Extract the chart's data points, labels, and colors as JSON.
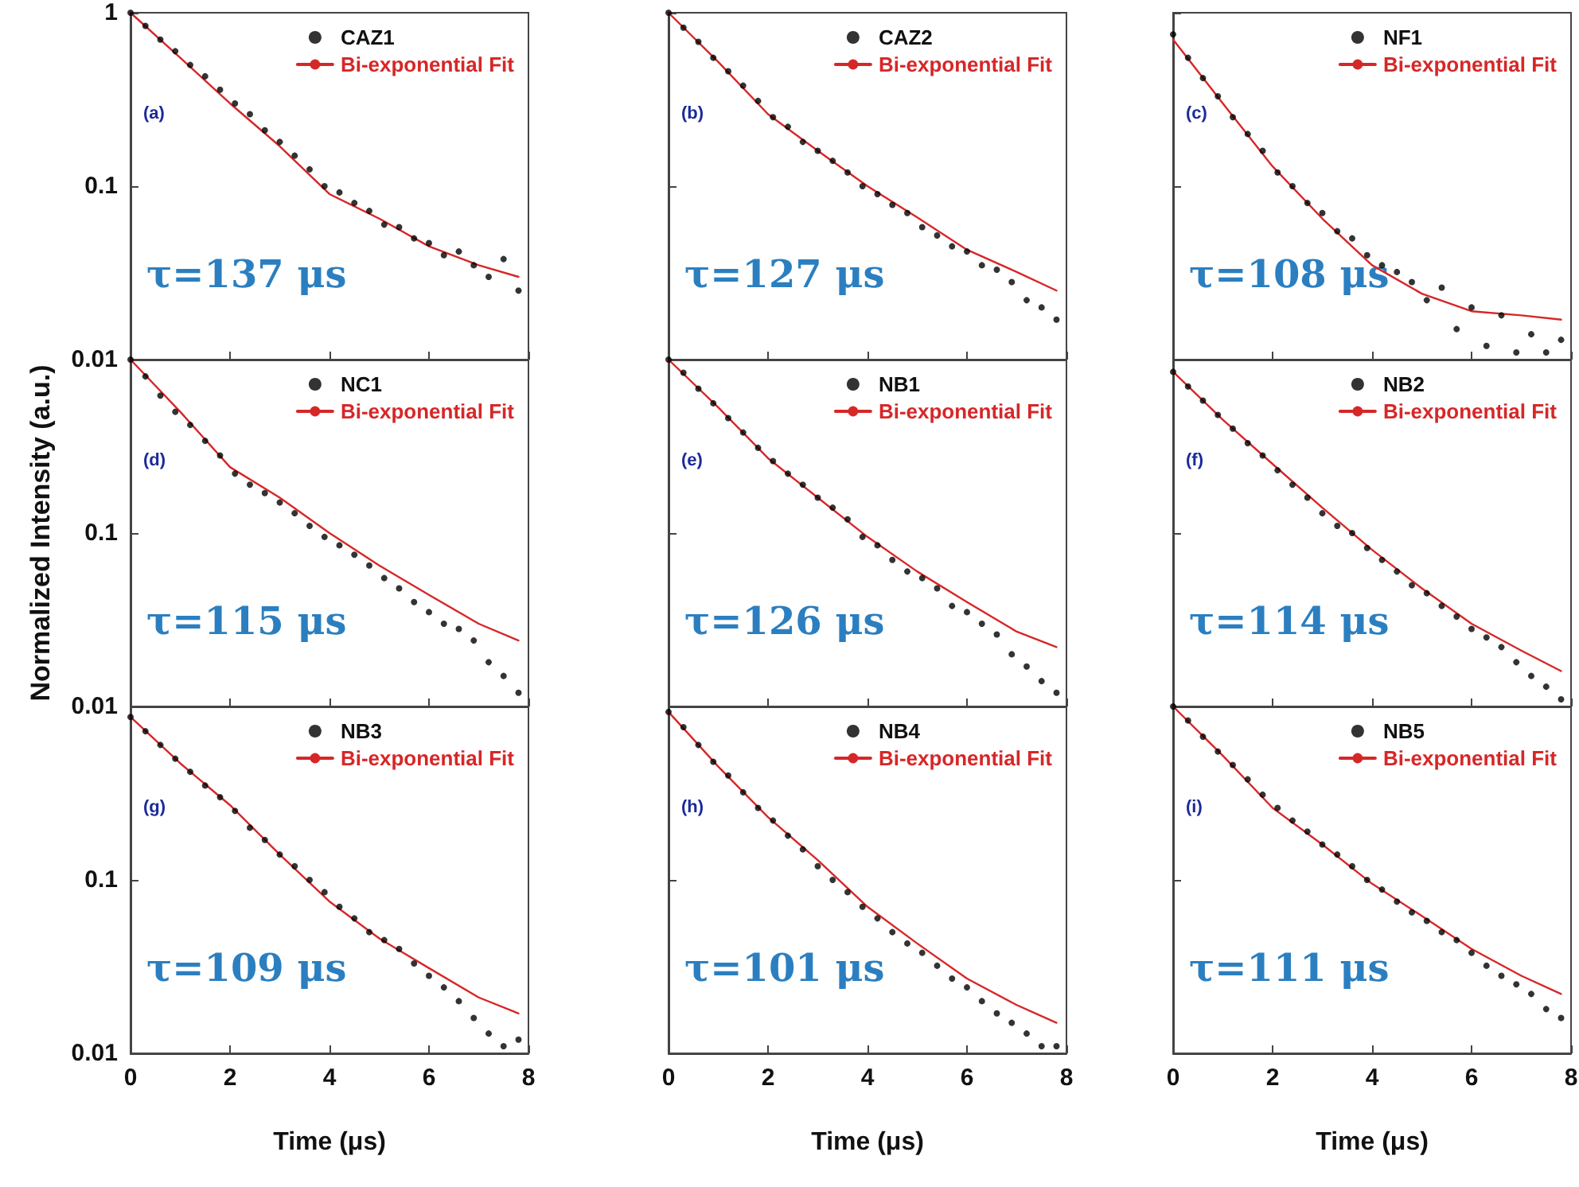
{
  "chart_data": [
    {
      "type": "scatter",
      "annotations": [
        "(a)",
        "τ=137 μs"
      ],
      "xlim": [
        0,
        8
      ],
      "xticks": [
        0,
        2,
        4,
        6,
        8
      ],
      "ylim": [
        0.01,
        1
      ],
      "yticks": [
        0.01,
        0.1,
        1
      ],
      "log": "y",
      "legend": "top right",
      "marker": "circle",
      "tick_labels": "y",
      "series": [
        {
          "name": "CAZ1",
          "color": "#000000",
          "x": [
            0,
            0.3,
            0.6,
            0.9,
            1.2,
            1.5,
            1.8,
            2.1,
            2.4,
            2.7,
            3,
            3.3,
            3.6,
            3.9,
            4.2,
            4.5,
            4.8,
            5.1,
            5.4,
            5.7,
            6,
            6.3,
            6.6,
            6.9,
            7.2,
            7.5,
            7.8
          ],
          "values": [
            1.0,
            0.84,
            0.7,
            0.6,
            0.5,
            0.43,
            0.36,
            0.3,
            0.26,
            0.21,
            0.18,
            0.15,
            0.125,
            0.1,
            0.092,
            0.08,
            0.072,
            0.06,
            0.058,
            0.05,
            0.047,
            0.04,
            0.042,
            0.035,
            0.03,
            0.038,
            0.025
          ]
        },
        {
          "name": "Bi-exponential Fit",
          "type": "line",
          "marker": "none",
          "color": "#d62728",
          "x": [
            0,
            1,
            2,
            3,
            4,
            5,
            6,
            7,
            7.8
          ],
          "values": [
            1,
            0.55,
            0.3,
            0.17,
            0.09,
            0.065,
            0.045,
            0.035,
            0.03
          ]
        }
      ]
    },
    {
      "type": "scatter",
      "annotations": [
        "(b)",
        "τ=127 μs"
      ],
      "xlim": [
        0,
        8
      ],
      "xticks": [
        0,
        2,
        4,
        6,
        8
      ],
      "ylim": [
        0.01,
        1
      ],
      "yticks": [
        0.01,
        0.1,
        1
      ],
      "log": "y",
      "legend": "top right",
      "marker": "circle",
      "tick_labels": false,
      "series": [
        {
          "name": "CAZ2",
          "color": "#000000",
          "x": [
            0,
            0.3,
            0.6,
            0.9,
            1.2,
            1.5,
            1.8,
            2.1,
            2.4,
            2.7,
            3,
            3.3,
            3.6,
            3.9,
            4.2,
            4.5,
            4.8,
            5.1,
            5.4,
            5.7,
            6,
            6.3,
            6.6,
            6.9,
            7.2,
            7.5,
            7.8
          ],
          "values": [
            1.0,
            0.82,
            0.68,
            0.55,
            0.46,
            0.38,
            0.31,
            0.25,
            0.22,
            0.18,
            0.16,
            0.14,
            0.12,
            0.1,
            0.09,
            0.078,
            0.07,
            0.058,
            0.052,
            0.045,
            0.042,
            0.035,
            0.033,
            0.028,
            0.022,
            0.02,
            0.017
          ]
        },
        {
          "name": "Bi-exponential Fit",
          "type": "line",
          "marker": "none",
          "color": "#d62728",
          "x": [
            0,
            1,
            2,
            3,
            4,
            5,
            6,
            7,
            7.8
          ],
          "values": [
            1,
            0.52,
            0.26,
            0.16,
            0.1,
            0.066,
            0.043,
            0.032,
            0.025
          ]
        }
      ]
    },
    {
      "type": "scatter",
      "annotations": [
        "(c)",
        "τ=108 μs"
      ],
      "xlim": [
        0,
        8
      ],
      "xticks": [
        0,
        2,
        4,
        6,
        8
      ],
      "ylim": [
        0.01,
        1
      ],
      "yticks": [
        0.01,
        0.1,
        1
      ],
      "log": "y",
      "legend": "top right",
      "marker": "circle",
      "tick_labels": false,
      "series": [
        {
          "name": "NF1",
          "color": "#000000",
          "x": [
            0,
            0.3,
            0.6,
            0.9,
            1.2,
            1.5,
            1.8,
            2.1,
            2.4,
            2.7,
            3,
            3.3,
            3.6,
            3.9,
            4.2,
            4.5,
            4.8,
            5.1,
            5.4,
            5.7,
            6,
            6.3,
            6.6,
            6.9,
            7.2,
            7.5,
            7.8
          ],
          "values": [
            0.75,
            0.55,
            0.42,
            0.33,
            0.25,
            0.2,
            0.16,
            0.12,
            0.1,
            0.08,
            0.07,
            0.055,
            0.05,
            0.04,
            0.035,
            0.032,
            0.028,
            0.022,
            0.026,
            0.015,
            0.02,
            0.012,
            0.018,
            0.011,
            0.014,
            0.011,
            0.013
          ]
        },
        {
          "name": "Bi-exponential Fit",
          "type": "line",
          "marker": "none",
          "color": "#d62728",
          "x": [
            0,
            1,
            2,
            3,
            4,
            5,
            6,
            7,
            7.8
          ],
          "values": [
            0.7,
            0.3,
            0.13,
            0.065,
            0.035,
            0.024,
            0.019,
            0.018,
            0.017
          ]
        }
      ]
    },
    {
      "type": "scatter",
      "ylabel": "Normalized Intensity (a.u.)",
      "annotations": [
        "(d)",
        "τ=115 μs"
      ],
      "xlim": [
        0,
        8
      ],
      "xticks": [
        0,
        2,
        4,
        6,
        8
      ],
      "ylim": [
        0.01,
        1
      ],
      "yticks": [
        0.01,
        0.1
      ],
      "log": "y",
      "legend": "top right",
      "marker": "circle",
      "tick_labels": "y",
      "series": [
        {
          "name": "NC1",
          "color": "#000000",
          "x": [
            0,
            0.3,
            0.6,
            0.9,
            1.2,
            1.5,
            1.8,
            2.1,
            2.4,
            2.7,
            3,
            3.3,
            3.6,
            3.9,
            4.2,
            4.5,
            4.8,
            5.1,
            5.4,
            5.7,
            6,
            6.3,
            6.6,
            6.9,
            7.2,
            7.5,
            7.8
          ],
          "values": [
            1.0,
            0.8,
            0.62,
            0.5,
            0.42,
            0.34,
            0.28,
            0.22,
            0.19,
            0.17,
            0.15,
            0.13,
            0.11,
            0.095,
            0.085,
            0.075,
            0.065,
            0.055,
            0.048,
            0.04,
            0.035,
            0.03,
            0.028,
            0.024,
            0.018,
            0.015,
            0.012
          ]
        },
        {
          "name": "Bi-exponential Fit",
          "type": "line",
          "marker": "none",
          "color": "#d62728",
          "x": [
            0,
            1,
            2,
            3,
            4,
            5,
            6,
            7,
            7.8
          ],
          "values": [
            1,
            0.5,
            0.24,
            0.16,
            0.1,
            0.065,
            0.044,
            0.03,
            0.024
          ]
        }
      ]
    },
    {
      "type": "scatter",
      "annotations": [
        "(e)",
        "τ=126 μs"
      ],
      "xlim": [
        0,
        8
      ],
      "xticks": [
        0,
        2,
        4,
        6,
        8
      ],
      "ylim": [
        0.01,
        1
      ],
      "yticks": [
        0.01,
        0.1
      ],
      "log": "y",
      "legend": "top right",
      "marker": "circle",
      "tick_labels": false,
      "series": [
        {
          "name": "NB1",
          "color": "#000000",
          "x": [
            0,
            0.3,
            0.6,
            0.9,
            1.2,
            1.5,
            1.8,
            2.1,
            2.4,
            2.7,
            3,
            3.3,
            3.6,
            3.9,
            4.2,
            4.5,
            4.8,
            5.1,
            5.4,
            5.7,
            6,
            6.3,
            6.6,
            6.9,
            7.2,
            7.5,
            7.8
          ],
          "values": [
            1.0,
            0.84,
            0.68,
            0.56,
            0.46,
            0.38,
            0.31,
            0.26,
            0.22,
            0.19,
            0.16,
            0.14,
            0.12,
            0.095,
            0.085,
            0.07,
            0.06,
            0.055,
            0.048,
            0.038,
            0.035,
            0.03,
            0.026,
            0.02,
            0.017,
            0.014,
            0.012
          ]
        },
        {
          "name": "Bi-exponential Fit",
          "type": "line",
          "marker": "none",
          "color": "#d62728",
          "x": [
            0,
            1,
            2,
            3,
            4,
            5,
            6,
            7,
            7.8
          ],
          "values": [
            1,
            0.53,
            0.27,
            0.16,
            0.095,
            0.06,
            0.04,
            0.027,
            0.022
          ]
        }
      ]
    },
    {
      "type": "scatter",
      "annotations": [
        "(f)",
        "τ=114 μs"
      ],
      "xlim": [
        0,
        8
      ],
      "xticks": [
        0,
        2,
        4,
        6,
        8
      ],
      "ylim": [
        0.01,
        1
      ],
      "yticks": [
        0.01,
        0.1
      ],
      "log": "y",
      "legend": "top right",
      "marker": "circle",
      "tick_labels": false,
      "series": [
        {
          "name": "NB2",
          "color": "#000000",
          "x": [
            0,
            0.3,
            0.6,
            0.9,
            1.2,
            1.5,
            1.8,
            2.1,
            2.4,
            2.7,
            3,
            3.3,
            3.6,
            3.9,
            4.2,
            4.5,
            4.8,
            5.1,
            5.4,
            5.7,
            6,
            6.3,
            6.6,
            6.9,
            7.2,
            7.5,
            7.8
          ],
          "values": [
            0.85,
            0.7,
            0.58,
            0.48,
            0.4,
            0.33,
            0.28,
            0.23,
            0.19,
            0.16,
            0.13,
            0.11,
            0.1,
            0.082,
            0.07,
            0.06,
            0.05,
            0.045,
            0.038,
            0.033,
            0.028,
            0.025,
            0.022,
            0.018,
            0.015,
            0.013,
            0.011
          ]
        },
        {
          "name": "Bi-exponential Fit",
          "type": "line",
          "marker": "none",
          "color": "#d62728",
          "x": [
            0,
            1,
            2,
            3,
            4,
            5,
            6,
            7,
            7.8
          ],
          "values": [
            0.85,
            0.45,
            0.25,
            0.14,
            0.08,
            0.048,
            0.03,
            0.021,
            0.016
          ]
        }
      ]
    },
    {
      "type": "scatter",
      "xlabel": "Time (μs)",
      "annotations": [
        "(g)",
        "τ=109 μs"
      ],
      "xlim": [
        0,
        8
      ],
      "xticks": [
        0,
        2,
        4,
        6,
        8
      ],
      "ylim": [
        0.01,
        1
      ],
      "yticks": [
        0.01,
        0.1
      ],
      "log": "y",
      "legend": "top right",
      "marker": "circle",
      "series": [
        {
          "name": "NB3",
          "color": "#000000",
          "x": [
            0,
            0.3,
            0.6,
            0.9,
            1.2,
            1.5,
            1.8,
            2.1,
            2.4,
            2.7,
            3,
            3.3,
            3.6,
            3.9,
            4.2,
            4.5,
            4.8,
            5.1,
            5.4,
            5.7,
            6,
            6.3,
            6.6,
            6.9,
            7.2,
            7.5,
            7.8
          ],
          "values": [
            0.87,
            0.72,
            0.6,
            0.5,
            0.42,
            0.35,
            0.3,
            0.25,
            0.2,
            0.17,
            0.14,
            0.12,
            0.1,
            0.085,
            0.07,
            0.06,
            0.05,
            0.045,
            0.04,
            0.033,
            0.028,
            0.024,
            0.02,
            0.016,
            0.013,
            0.011,
            0.012
          ]
        },
        {
          "name": "Bi-exponential Fit",
          "type": "line",
          "marker": "none",
          "color": "#d62728",
          "x": [
            0,
            1,
            2,
            3,
            4,
            5,
            6,
            7,
            7.8
          ],
          "values": [
            0.87,
            0.47,
            0.27,
            0.14,
            0.075,
            0.046,
            0.031,
            0.021,
            0.017
          ]
        }
      ]
    },
    {
      "type": "scatter",
      "xlabel": "Time (μs)",
      "annotations": [
        "(h)",
        "τ=101 μs"
      ],
      "xlim": [
        0,
        8
      ],
      "xticks": [
        0,
        2,
        4,
        6,
        8
      ],
      "ylim": [
        0.01,
        1
      ],
      "yticks": [
        0.01,
        0.1
      ],
      "log": "y",
      "legend": "top right",
      "marker": "circle",
      "tick_labels": "x",
      "series": [
        {
          "name": "NB4",
          "color": "#000000",
          "x": [
            0,
            0.3,
            0.6,
            0.9,
            1.2,
            1.5,
            1.8,
            2.1,
            2.4,
            2.7,
            3,
            3.3,
            3.6,
            3.9,
            4.2,
            4.5,
            4.8,
            5.1,
            5.4,
            5.7,
            6,
            6.3,
            6.6,
            6.9,
            7.2,
            7.5,
            7.8
          ],
          "values": [
            0.93,
            0.76,
            0.6,
            0.48,
            0.4,
            0.32,
            0.26,
            0.22,
            0.18,
            0.15,
            0.12,
            0.1,
            0.085,
            0.07,
            0.06,
            0.05,
            0.043,
            0.038,
            0.032,
            0.027,
            0.024,
            0.02,
            0.017,
            0.015,
            0.013,
            0.011,
            0.011
          ]
        },
        {
          "name": "Bi-exponential Fit",
          "type": "line",
          "marker": "none",
          "color": "#d62728",
          "x": [
            0,
            1,
            2,
            3,
            4,
            5,
            6,
            7,
            7.8
          ],
          "values": [
            0.93,
            0.45,
            0.23,
            0.13,
            0.07,
            0.043,
            0.027,
            0.019,
            0.015
          ]
        }
      ]
    },
    {
      "type": "scatter",
      "xlabel": "Time (μs)",
      "annotations": [
        "(i)",
        "τ=111 μs"
      ],
      "xlim": [
        0,
        8
      ],
      "xticks": [
        0,
        2,
        4,
        6,
        8
      ],
      "ylim": [
        0.01,
        1
      ],
      "yticks": [
        0.01,
        0.1
      ],
      "log": "y",
      "legend": "top right",
      "marker": "circle",
      "tick_labels": "x",
      "series": [
        {
          "name": "NB5",
          "color": "#000000",
          "x": [
            0,
            0.3,
            0.6,
            0.9,
            1.2,
            1.5,
            1.8,
            2.1,
            2.4,
            2.7,
            3,
            3.3,
            3.6,
            3.9,
            4.2,
            4.5,
            4.8,
            5.1,
            5.4,
            5.7,
            6,
            6.3,
            6.6,
            6.9,
            7.2,
            7.5,
            7.8
          ],
          "values": [
            1.0,
            0.83,
            0.67,
            0.55,
            0.46,
            0.38,
            0.31,
            0.26,
            0.22,
            0.19,
            0.16,
            0.14,
            0.12,
            0.1,
            0.088,
            0.075,
            0.065,
            0.058,
            0.05,
            0.045,
            0.038,
            0.032,
            0.028,
            0.025,
            0.022,
            0.018,
            0.016
          ]
        },
        {
          "name": "Bi-exponential Fit",
          "type": "line",
          "marker": "none",
          "color": "#d62728",
          "x": [
            0,
            1,
            2,
            3,
            4,
            5,
            6,
            7,
            7.8
          ],
          "values": [
            1,
            0.52,
            0.26,
            0.16,
            0.095,
            0.062,
            0.04,
            0.028,
            0.022
          ]
        }
      ]
    }
  ]
}
